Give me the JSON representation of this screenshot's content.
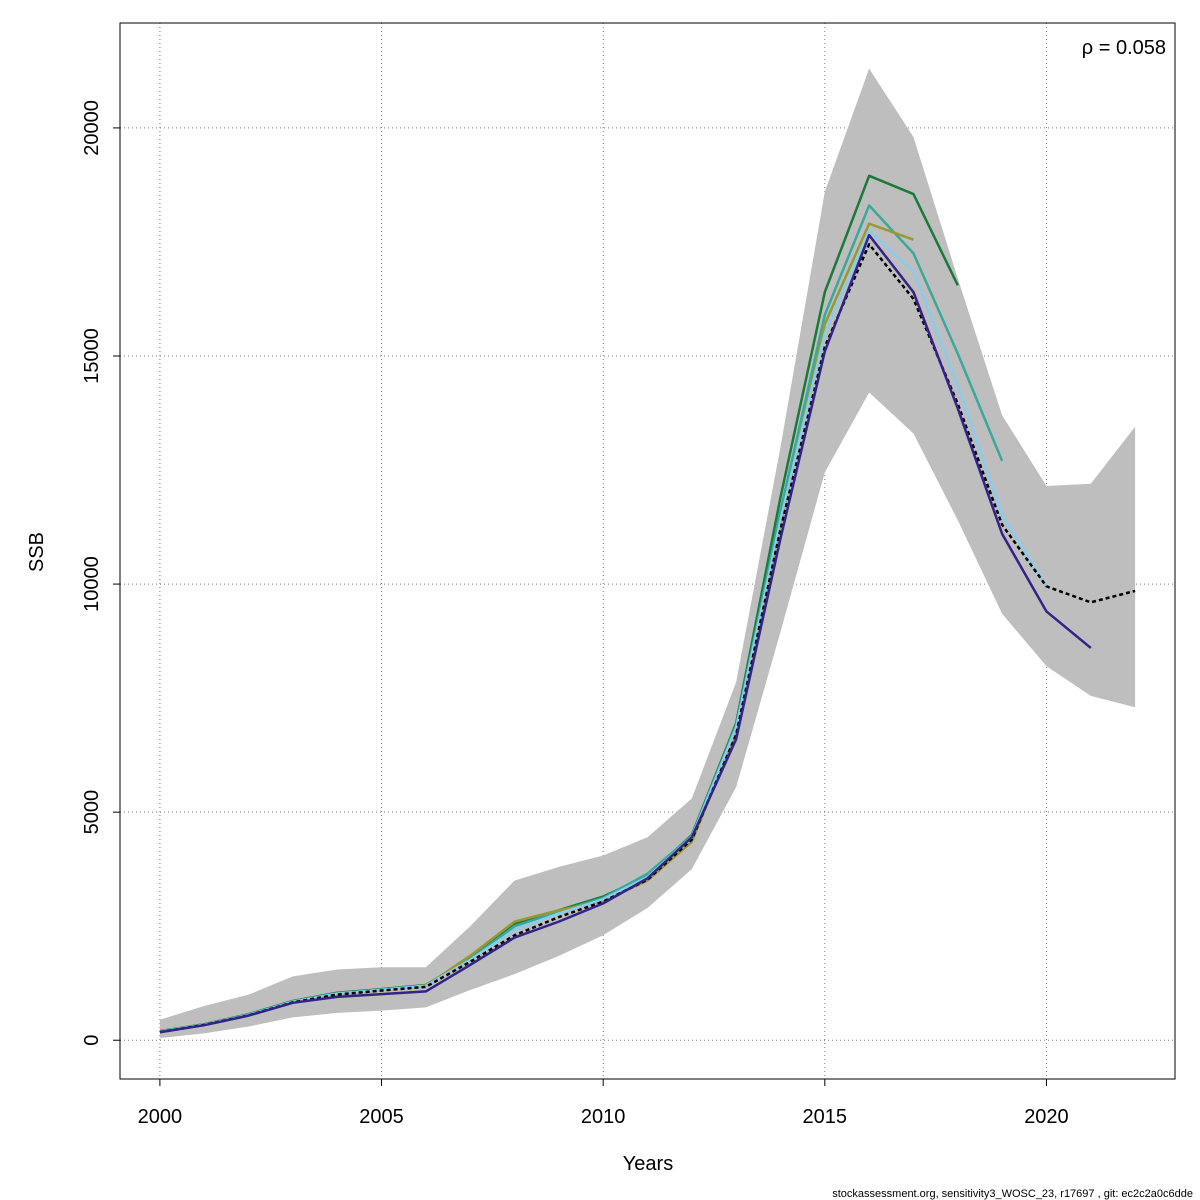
{
  "chart_data": {
    "type": "line",
    "xlabel": "Years",
    "ylabel": "SSB",
    "xlim": [
      1999.1,
      2022.9
    ],
    "ylim": [
      -850,
      22300
    ],
    "x_ticks": [
      2000,
      2005,
      2010,
      2015,
      2020
    ],
    "y_ticks": [
      0,
      5000,
      10000,
      15000,
      20000
    ],
    "x_tick_labels": [
      "2000",
      "2005",
      "2010",
      "2015",
      "2020"
    ],
    "y_tick_labels": [
      "0",
      "5000",
      "10000",
      "15000",
      "20000"
    ],
    "grid": true,
    "annotation": {
      "symbol": "ρ",
      "text": " = 0.058"
    },
    "band": {
      "x": [
        2000,
        2001,
        2002,
        2003,
        2004,
        2005,
        2006,
        2007,
        2008,
        2009,
        2010,
        2011,
        2012,
        2013,
        2014,
        2015,
        2016,
        2017,
        2018,
        2019,
        2020,
        2021,
        2022
      ],
      "upper": [
        450,
        750,
        1000,
        1400,
        1550,
        1600,
        1600,
        2500,
        3500,
        3800,
        4050,
        4450,
        5300,
        7850,
        13000,
        18600,
        21300,
        19800,
        16700,
        13700,
        12150,
        12200,
        13450
      ],
      "lower": [
        50,
        150,
        300,
        500,
        600,
        650,
        720,
        1100,
        1450,
        1850,
        2300,
        2900,
        3750,
        5550,
        8950,
        12450,
        14200,
        13300,
        11400,
        9350,
        8200,
        7550,
        7300
      ],
      "color": "#bebebe"
    },
    "series": [
      {
        "color": "#1a7a3a",
        "x": [
          2000,
          2001,
          2002,
          2003,
          2004,
          2005,
          2006,
          2007,
          2008,
          2009,
          2010,
          2011,
          2012,
          2013,
          2014,
          2015,
          2016,
          2017,
          2018
        ],
        "values": [
          200,
          350,
          570,
          860,
          1040,
          1120,
          1210,
          1800,
          2550,
          2850,
          3150,
          3600,
          4500,
          6950,
          11900,
          16400,
          18950,
          18550,
          16550
        ]
      },
      {
        "color": "#3aa89a",
        "x": [
          2000,
          2001,
          2002,
          2003,
          2004,
          2005,
          2006,
          2007,
          2008,
          2009,
          2010,
          2011,
          2012,
          2013,
          2014,
          2015,
          2016,
          2017,
          2018,
          2019
        ],
        "values": [
          195,
          345,
          560,
          850,
          1030,
          1110,
          1200,
          1780,
          2500,
          2820,
          3120,
          3650,
          4480,
          6900,
          11600,
          15900,
          18300,
          17250,
          15050,
          12700
        ]
      },
      {
        "color": "#999933",
        "x": [
          2000,
          2001,
          2002,
          2003,
          2004,
          2005,
          2006,
          2007,
          2008,
          2009,
          2010,
          2011,
          2012,
          2013,
          2014,
          2015,
          2016,
          2017
        ],
        "values": [
          185,
          340,
          550,
          840,
          1010,
          1100,
          1190,
          1850,
          2600,
          2850,
          3050,
          3500,
          4350,
          6750,
          11300,
          15700,
          17900,
          17550
        ]
      },
      {
        "color": "#88ccee",
        "x": [
          2000,
          2001,
          2002,
          2003,
          2004,
          2005,
          2006,
          2007,
          2008,
          2009,
          2010,
          2011,
          2012,
          2013,
          2014,
          2015,
          2016,
          2017,
          2018,
          2019,
          2020
        ],
        "values": [
          190,
          340,
          555,
          845,
          1020,
          1105,
          1195,
          1760,
          2420,
          2780,
          3090,
          3580,
          4450,
          6850,
          11400,
          15500,
          17750,
          16850,
          14350,
          11500,
          9950
        ]
      },
      {
        "color": "#000000",
        "dashed": true,
        "x": [
          2000,
          2001,
          2002,
          2003,
          2004,
          2005,
          2006,
          2007,
          2008,
          2009,
          2010,
          2011,
          2012,
          2013,
          2014,
          2015,
          2016,
          2017,
          2018,
          2019,
          2020,
          2021,
          2022
        ],
        "values": [
          180,
          335,
          545,
          830,
          1000,
          1090,
          1170,
          1720,
          2300,
          2700,
          3040,
          3520,
          4400,
          6700,
          11200,
          15200,
          17450,
          16250,
          13950,
          11300,
          9950,
          9600,
          9850
        ]
      },
      {
        "color": "#332288",
        "x": [
          2000,
          2001,
          2002,
          2003,
          2004,
          2005,
          2006,
          2007,
          2008,
          2009,
          2010,
          2011,
          2012,
          2013,
          2014,
          2015,
          2016,
          2017,
          2018,
          2019,
          2020,
          2021
        ],
        "values": [
          175,
          330,
          540,
          820,
          950,
          1010,
          1070,
          1650,
          2250,
          2600,
          3000,
          3550,
          4450,
          6600,
          11000,
          15100,
          17650,
          16400,
          13850,
          11100,
          9400,
          8600
        ]
      }
    ]
  },
  "footer": "stockassessment.org, sensitivity3_WOSC_23, r17697 , git: ec2c2a0c6dde"
}
